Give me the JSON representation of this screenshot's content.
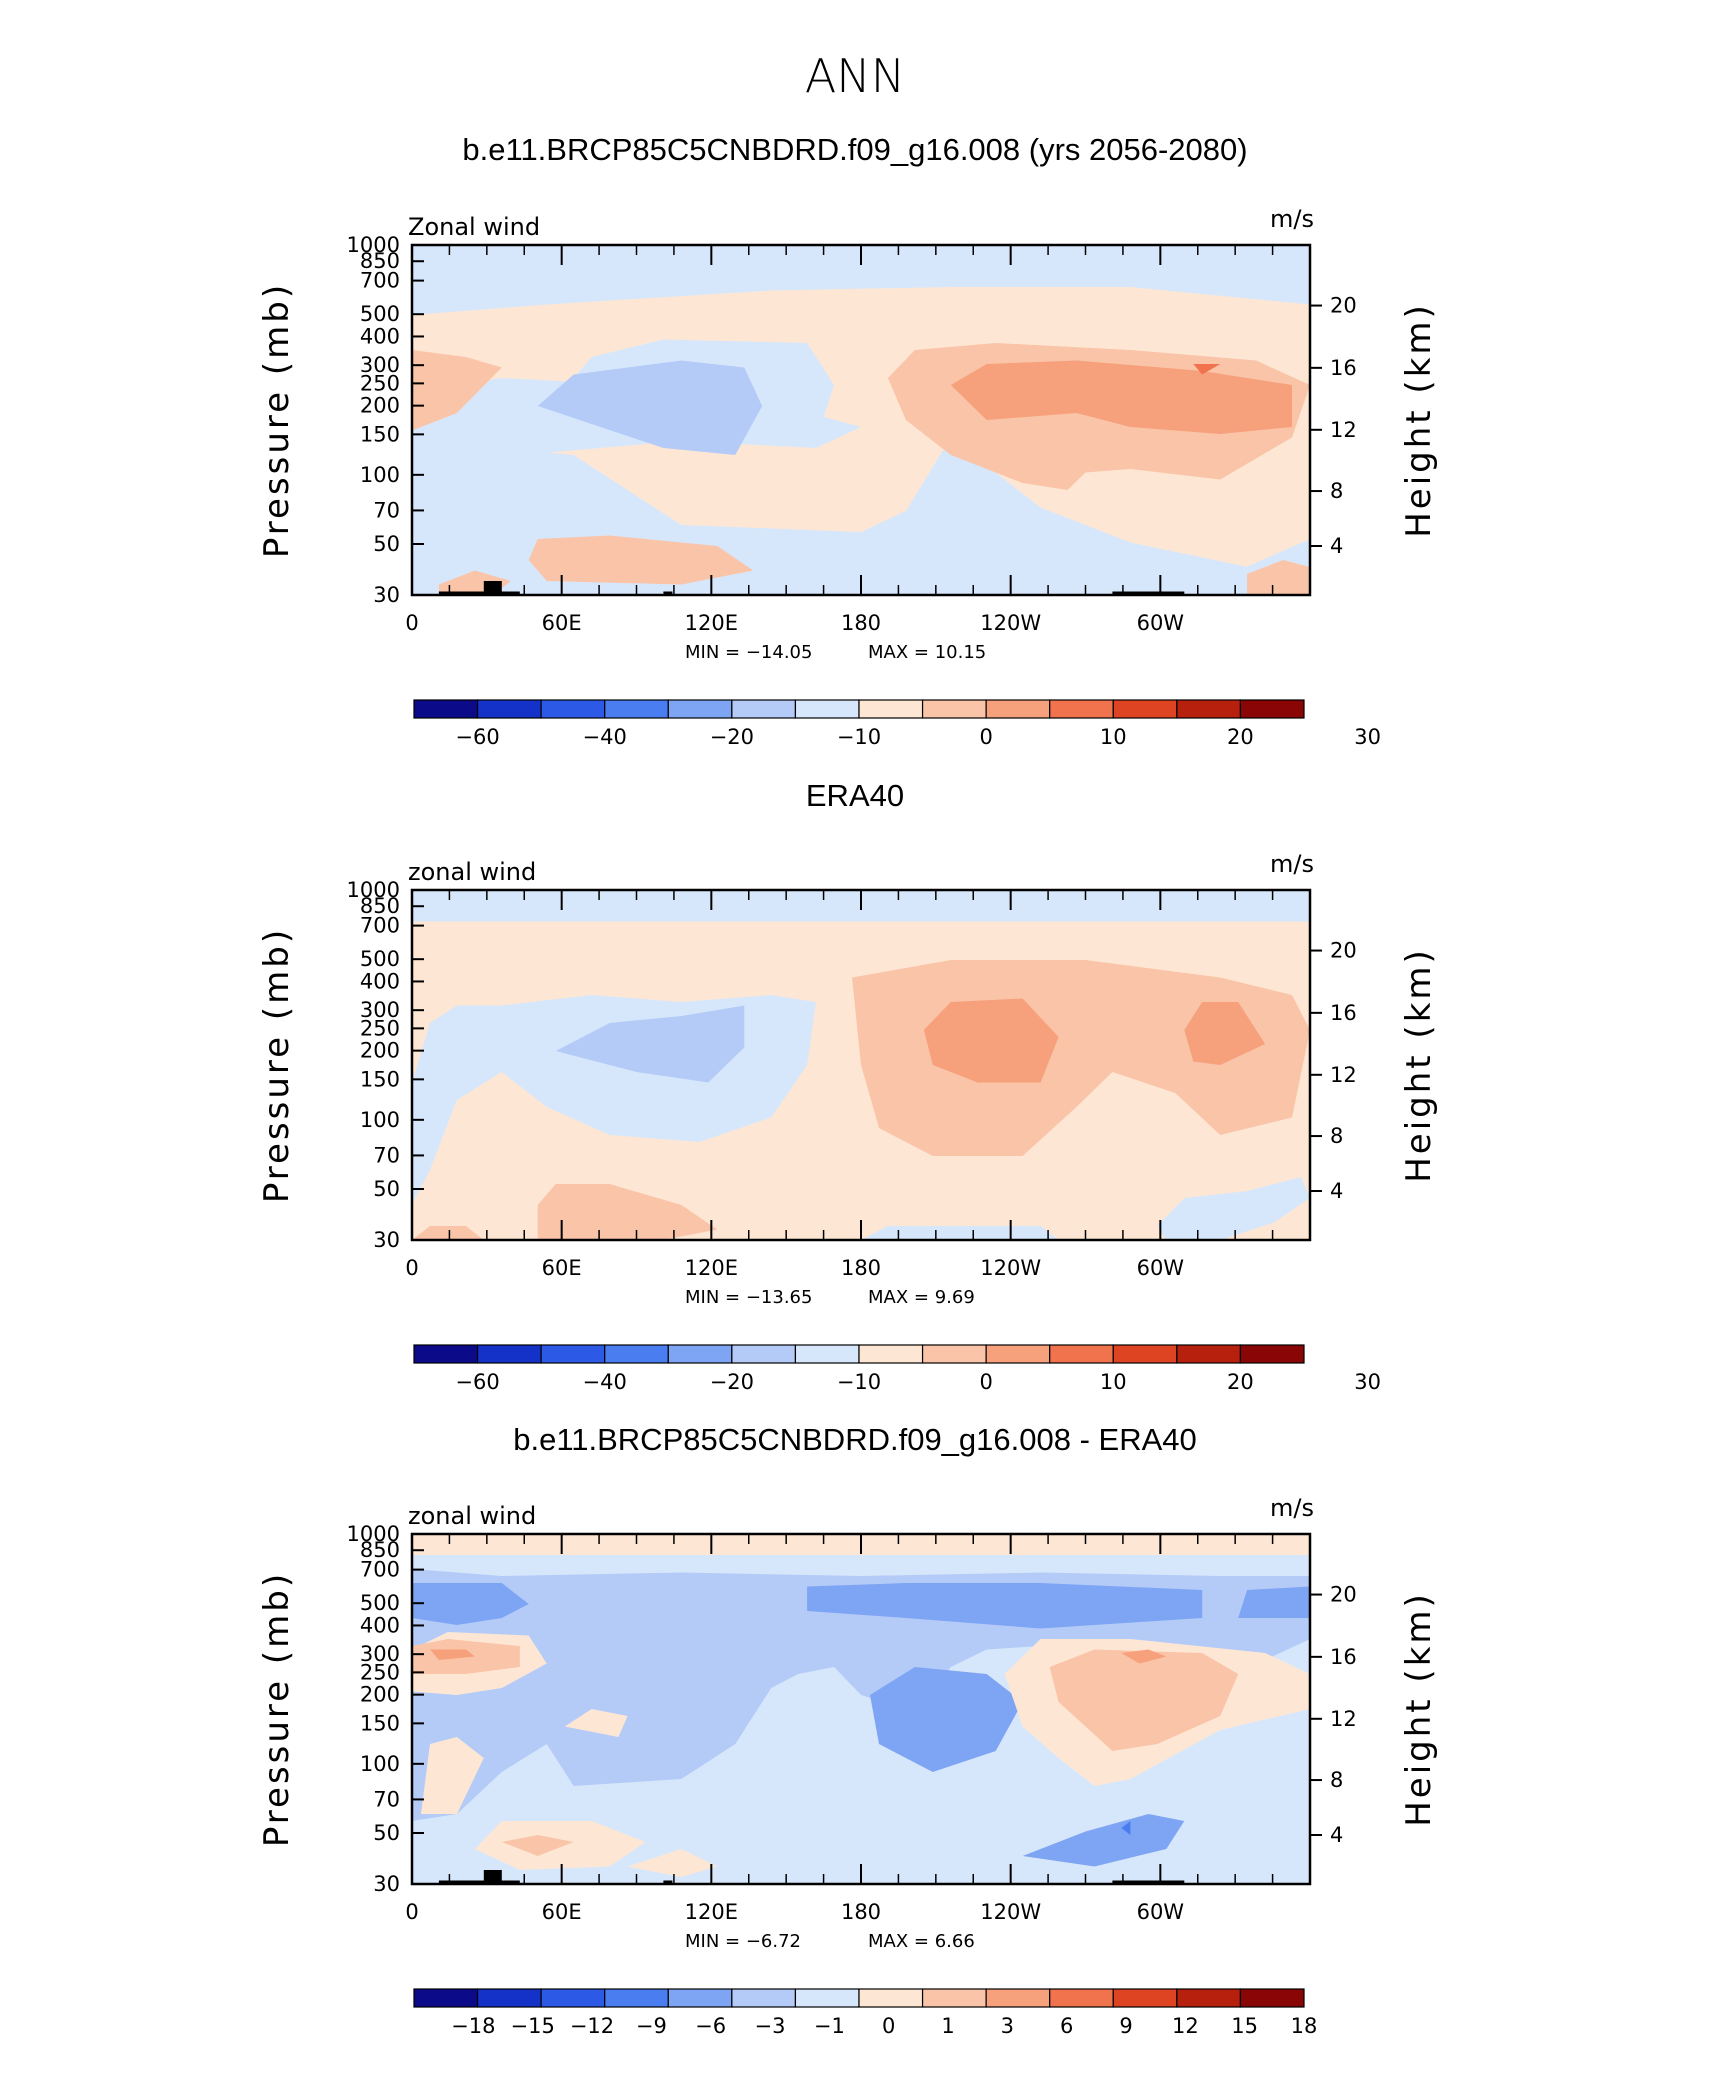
{
  "figure": {
    "title": "ANN"
  },
  "colors": {
    "diverging_palette": [
      "#0b0b8a",
      "#1432c8",
      "#2c5ae6",
      "#4a7ef0",
      "#7ea4f4",
      "#b4cbf8",
      "#d7e7fb",
      "#fde7d4",
      "#fac4a8",
      "#f6a07c",
      "#f0734e",
      "#de4422",
      "#b8200e",
      "#8a0606"
    ]
  },
  "chart_data": [
    {
      "type": "heatmap",
      "title": "b.e11.BRCP85C5CNBDRD.f09_g16.008 (yrs 2056-2080)",
      "left_label": "Zonal wind",
      "units": "m/s",
      "ylabel": "Pressure (mb)",
      "ylabel_right": "Height (km)",
      "x_ticks": [
        "0",
        "60E",
        "120E",
        "180",
        "120W",
        "60W"
      ],
      "y_ticks": [
        "30",
        "50",
        "70",
        "100",
        "150",
        "200",
        "250",
        "300",
        "400",
        "500",
        "700",
        "850",
        "1000"
      ],
      "y2_ticks": [
        "20",
        "16",
        "12",
        "8",
        "4"
      ],
      "min_label": "MIN = −14.05",
      "max_label": "MAX =   10.15",
      "colorbar_labels": [
        "−60",
        "−40",
        "−20",
        "−10",
        "0",
        "10",
        "20",
        "30"
      ],
      "min": -14.05,
      "max": 10.15
    },
    {
      "type": "heatmap",
      "title": "ERA40",
      "left_label": "zonal wind",
      "units": "m/s",
      "ylabel": "Pressure (mb)",
      "ylabel_right": "Height (km)",
      "x_ticks": [
        "0",
        "60E",
        "120E",
        "180",
        "120W",
        "60W"
      ],
      "y_ticks": [
        "30",
        "50",
        "70",
        "100",
        "150",
        "200",
        "250",
        "300",
        "400",
        "500",
        "700",
        "850",
        "1000"
      ],
      "y2_ticks": [
        "20",
        "16",
        "12",
        "8",
        "4"
      ],
      "min_label": "MIN = −13.65",
      "max_label": "MAX =     9.69",
      "colorbar_labels": [
        "−60",
        "−40",
        "−20",
        "−10",
        "0",
        "10",
        "20",
        "30"
      ],
      "min": -13.65,
      "max": 9.69
    },
    {
      "type": "heatmap",
      "title": "b.e11.BRCP85C5CNBDRD.f09_g16.008 - ERA40",
      "left_label": "zonal wind",
      "units": "m/s",
      "ylabel": "Pressure (mb)",
      "ylabel_right": "Height (km)",
      "x_ticks": [
        "0",
        "60E",
        "120E",
        "180",
        "120W",
        "60W"
      ],
      "y_ticks": [
        "30",
        "50",
        "70",
        "100",
        "150",
        "200",
        "250",
        "300",
        "400",
        "500",
        "700",
        "850",
        "1000"
      ],
      "y2_ticks": [
        "20",
        "16",
        "12",
        "8",
        "4"
      ],
      "min_label": "MIN =   −6.72",
      "max_label": "MAX =     6.66",
      "colorbar_labels": [
        "−18",
        "−15",
        "−12",
        "−9",
        "−6",
        "−3",
        "−1",
        "0",
        "1",
        "3",
        "6",
        "9",
        "12",
        "15",
        "18"
      ],
      "min": -6.72,
      "max": 6.66
    }
  ]
}
